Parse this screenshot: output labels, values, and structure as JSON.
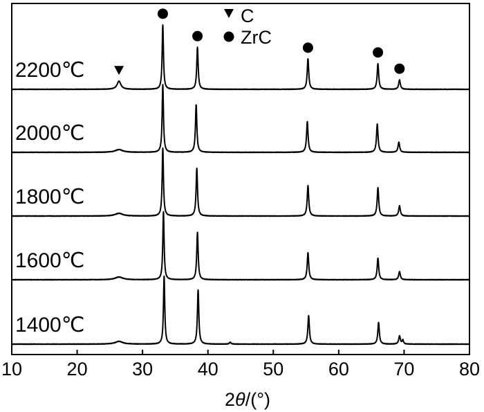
{
  "chart_data": {
    "type": "line",
    "xlabel_parts": [
      "2",
      "θ",
      "/(°)"
    ],
    "ylabel": "",
    "xlim": [
      10,
      80
    ],
    "x_ticks": [
      "10",
      "20",
      "30",
      "40",
      "50",
      "60",
      "70",
      "80"
    ],
    "grid": false,
    "legend_placement": "top-center",
    "legend": [
      {
        "marker": "triangle-down",
        "label": "C"
      },
      {
        "marker": "circle",
        "label": "ZrC"
      }
    ],
    "series": [
      {
        "name": "2200℃",
        "peaks": [
          {
            "x": 26.4,
            "h": 0.12,
            "w": 0.35
          },
          {
            "x": 33.1,
            "h": 0.95,
            "w": 0.12
          },
          {
            "x": 38.4,
            "h": 0.62,
            "w": 0.13
          },
          {
            "x": 55.3,
            "h": 0.45,
            "w": 0.14
          },
          {
            "x": 66.0,
            "h": 0.38,
            "w": 0.14
          },
          {
            "x": 69.3,
            "h": 0.14,
            "w": 0.15
          }
        ],
        "markers": [
          {
            "x": 26.4,
            "marker": "triangle-down"
          },
          {
            "x": 33.1,
            "marker": "circle"
          },
          {
            "x": 38.4,
            "marker": "circle"
          },
          {
            "x": 55.3,
            "marker": "circle"
          },
          {
            "x": 66.0,
            "marker": "circle"
          },
          {
            "x": 69.3,
            "marker": "circle"
          }
        ]
      },
      {
        "name": "2000℃",
        "peaks": [
          {
            "x": 26.4,
            "h": 0.04,
            "w": 0.7
          },
          {
            "x": 33.1,
            "h": 1.0,
            "w": 0.12
          },
          {
            "x": 38.2,
            "h": 0.7,
            "w": 0.13
          },
          {
            "x": 55.2,
            "h": 0.45,
            "w": 0.14
          },
          {
            "x": 65.9,
            "h": 0.42,
            "w": 0.14
          },
          {
            "x": 69.2,
            "h": 0.15,
            "w": 0.15
          }
        ],
        "markers": []
      },
      {
        "name": "1800℃",
        "peaks": [
          {
            "x": 26.4,
            "h": 0.04,
            "w": 0.7
          },
          {
            "x": 33.1,
            "h": 1.0,
            "w": 0.12
          },
          {
            "x": 38.3,
            "h": 0.7,
            "w": 0.13
          },
          {
            "x": 55.3,
            "h": 0.45,
            "w": 0.14
          },
          {
            "x": 66.0,
            "h": 0.42,
            "w": 0.14
          },
          {
            "x": 69.3,
            "h": 0.15,
            "w": 0.15
          }
        ],
        "markers": []
      },
      {
        "name": "1600℃",
        "peaks": [
          {
            "x": 26.4,
            "h": 0.04,
            "w": 0.7
          },
          {
            "x": 33.2,
            "h": 1.0,
            "w": 0.12
          },
          {
            "x": 38.4,
            "h": 0.7,
            "w": 0.13
          },
          {
            "x": 55.3,
            "h": 0.4,
            "w": 0.14
          },
          {
            "x": 66.0,
            "h": 0.32,
            "w": 0.14
          },
          {
            "x": 69.3,
            "h": 0.12,
            "w": 0.15
          }
        ],
        "markers": []
      },
      {
        "name": "1400℃",
        "peaks": [
          {
            "x": 26.4,
            "h": 0.04,
            "w": 0.7
          },
          {
            "x": 33.3,
            "h": 1.0,
            "w": 0.12
          },
          {
            "x": 38.5,
            "h": 0.8,
            "w": 0.13
          },
          {
            "x": 43.4,
            "h": 0.03,
            "w": 0.15
          },
          {
            "x": 55.4,
            "h": 0.42,
            "w": 0.14
          },
          {
            "x": 66.1,
            "h": 0.32,
            "w": 0.14
          },
          {
            "x": 69.3,
            "h": 0.12,
            "w": 0.15
          },
          {
            "x": 69.8,
            "h": 0.06,
            "w": 0.12
          }
        ],
        "markers": []
      }
    ]
  }
}
